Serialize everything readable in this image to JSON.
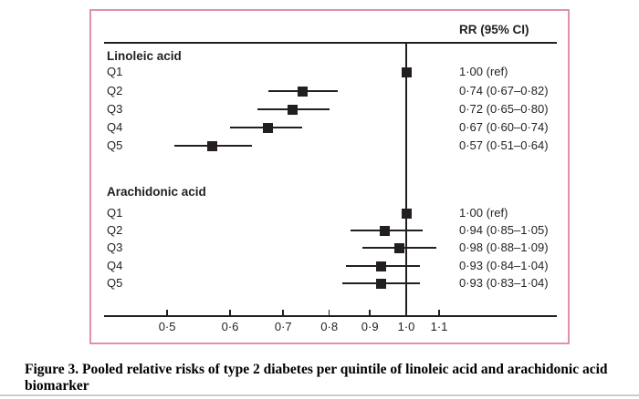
{
  "caption": "Figure 3. Pooled relative risks of type 2 diabetes per quintile of linoleic acid and arachidonic acid biomarker",
  "colors": {
    "figure_border_pink": "#dc93a7",
    "plot_line_black": "#231f20",
    "bottom_rule_gray": "#cccccc"
  },
  "chart_data": {
    "type": "forest",
    "title": "",
    "column_header": "RR (95% CI)",
    "x_scale": "log",
    "reference_value": 1.0,
    "grid": false,
    "x_ticks": [
      {
        "v": 0.5,
        "label": "0·5"
      },
      {
        "v": 0.6,
        "label": "0·6"
      },
      {
        "v": 0.7,
        "label": "0·7"
      },
      {
        "v": 0.8,
        "label": "0·8"
      },
      {
        "v": 0.9,
        "label": "0·9"
      },
      {
        "v": 1.0,
        "label": "1·0"
      },
      {
        "v": 1.1,
        "label": "1·1"
      }
    ],
    "groups": [
      {
        "name": "Linoleic acid",
        "rows": [
          {
            "label": "Q1",
            "rr": 1.0,
            "lo": null,
            "hi": null,
            "text": "1·00 (ref)"
          },
          {
            "label": "Q2",
            "rr": 0.74,
            "lo": 0.67,
            "hi": 0.82,
            "text": "0·74 (0·67–0·82)"
          },
          {
            "label": "Q3",
            "rr": 0.72,
            "lo": 0.65,
            "hi": 0.8,
            "text": "0·72 (0·65–0·80)"
          },
          {
            "label": "Q4",
            "rr": 0.67,
            "lo": 0.6,
            "hi": 0.74,
            "text": "0·67 (0·60–0·74)"
          },
          {
            "label": "Q5",
            "rr": 0.57,
            "lo": 0.51,
            "hi": 0.64,
            "text": "0·57 (0·51–0·64)"
          }
        ]
      },
      {
        "name": "Arachidonic acid",
        "rows": [
          {
            "label": "Q1",
            "rr": 1.0,
            "lo": null,
            "hi": null,
            "text": "1·00 (ref)"
          },
          {
            "label": "Q2",
            "rr": 0.94,
            "lo": 0.85,
            "hi": 1.05,
            "text": "0·94 (0·85–1·05)"
          },
          {
            "label": "Q3",
            "rr": 0.98,
            "lo": 0.88,
            "hi": 1.09,
            "text": "0·98 (0·88–1·09)"
          },
          {
            "label": "Q4",
            "rr": 0.93,
            "lo": 0.84,
            "hi": 1.04,
            "text": "0·93 (0·84–1·04)"
          },
          {
            "label": "Q5",
            "rr": 0.93,
            "lo": 0.83,
            "hi": 1.04,
            "text": "0·93 (0·83–1·04)"
          }
        ]
      }
    ]
  }
}
